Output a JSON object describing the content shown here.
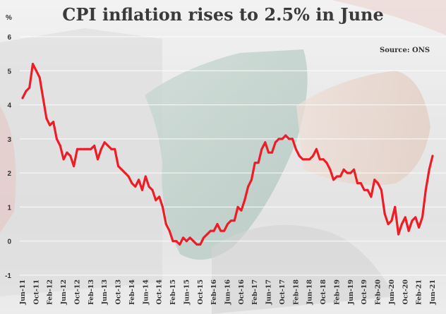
{
  "chart_data": {
    "type": "line",
    "title": "CPI inflation rises to 2.5% in June",
    "source": "Source: ONS",
    "ylabel": "%",
    "ylim": [
      -1,
      6
    ],
    "yticks": [
      "-1",
      "0",
      "1",
      "2",
      "3",
      "4",
      "5",
      "6"
    ],
    "grid": true,
    "line_color": "#ee1c25",
    "x_tick_labels": [
      "Jun-11",
      "Oct-11",
      "Feb-12",
      "Jun-12",
      "Oct-12",
      "Feb-13",
      "Jun-13",
      "Oct-13",
      "Feb-14",
      "Jun-14",
      "Oct-14",
      "Feb-15",
      "Jun-15",
      "Oct-15",
      "Feb-16",
      "Jun-16",
      "Oct-16",
      "Feb-17",
      "Jun-17",
      "Oct-17",
      "Feb-18",
      "Jun-18",
      "Oct-18",
      "Feb-19",
      "Jun-19",
      "Oct-19",
      "Feb-20",
      "Jun-20",
      "Oct-20",
      "Feb-21",
      "Jun-21"
    ],
    "series": [
      {
        "x": [
          "2011-06",
          "2011-07",
          "2011-08",
          "2011-09",
          "2011-10",
          "2011-11",
          "2011-12",
          "2012-01",
          "2012-02",
          "2012-03",
          "2012-04",
          "2012-05",
          "2012-06",
          "2012-07",
          "2012-08",
          "2012-09",
          "2012-10",
          "2012-11",
          "2012-12",
          "2013-01",
          "2013-02",
          "2013-03",
          "2013-04",
          "2013-05",
          "2013-06",
          "2013-07",
          "2013-08",
          "2013-09",
          "2013-10",
          "2013-11",
          "2013-12",
          "2014-01",
          "2014-02",
          "2014-03",
          "2014-04",
          "2014-05",
          "2014-06",
          "2014-07",
          "2014-08",
          "2014-09",
          "2014-10",
          "2014-11",
          "2014-12",
          "2015-01",
          "2015-02",
          "2015-03",
          "2015-04",
          "2015-05",
          "2015-06",
          "2015-07",
          "2015-08",
          "2015-09",
          "2015-10",
          "2015-11",
          "2015-12",
          "2016-01",
          "2016-02",
          "2016-03",
          "2016-04",
          "2016-05",
          "2016-06",
          "2016-07",
          "2016-08",
          "2016-09",
          "2016-10",
          "2016-11",
          "2016-12",
          "2017-01",
          "2017-02",
          "2017-03",
          "2017-04",
          "2017-05",
          "2017-06",
          "2017-07",
          "2017-08",
          "2017-09",
          "2017-10",
          "2017-11",
          "2017-12",
          "2018-01",
          "2018-02",
          "2018-03",
          "2018-04",
          "2018-05",
          "2018-06",
          "2018-07",
          "2018-08",
          "2018-09",
          "2018-10",
          "2018-11",
          "2018-12",
          "2019-01",
          "2019-02",
          "2019-03",
          "2019-04",
          "2019-05",
          "2019-06",
          "2019-07",
          "2019-08",
          "2019-09",
          "2019-10",
          "2019-11",
          "2019-12",
          "2020-01",
          "2020-02",
          "2020-03",
          "2020-04",
          "2020-05",
          "2020-06",
          "2020-07",
          "2020-08",
          "2020-09",
          "2020-10",
          "2020-11",
          "2020-12",
          "2021-01",
          "2021-02",
          "2021-03",
          "2021-04",
          "2021-05",
          "2021-06"
        ],
        "values": [
          4.2,
          4.4,
          4.5,
          5.2,
          5.0,
          4.8,
          4.2,
          3.6,
          3.4,
          3.5,
          3.0,
          2.8,
          2.4,
          2.6,
          2.5,
          2.2,
          2.7,
          2.7,
          2.7,
          2.7,
          2.7,
          2.8,
          2.4,
          2.7,
          2.9,
          2.8,
          2.7,
          2.7,
          2.2,
          2.1,
          2.0,
          1.9,
          1.7,
          1.6,
          1.8,
          1.5,
          1.9,
          1.6,
          1.5,
          1.2,
          1.3,
          1.0,
          0.5,
          0.3,
          0.0,
          0.0,
          -0.1,
          0.1,
          0.0,
          0.1,
          0.0,
          -0.1,
          -0.1,
          0.1,
          0.2,
          0.3,
          0.3,
          0.5,
          0.3,
          0.3,
          0.5,
          0.6,
          0.6,
          1.0,
          0.9,
          1.2,
          1.6,
          1.8,
          2.3,
          2.3,
          2.7,
          2.9,
          2.6,
          2.6,
          2.9,
          3.0,
          3.0,
          3.1,
          3.0,
          3.0,
          2.7,
          2.5,
          2.4,
          2.4,
          2.4,
          2.5,
          2.7,
          2.4,
          2.4,
          2.3,
          2.1,
          1.8,
          1.9,
          1.9,
          2.1,
          2.0,
          2.0,
          2.1,
          1.7,
          1.7,
          1.5,
          1.5,
          1.3,
          1.8,
          1.7,
          1.5,
          0.8,
          0.5,
          0.6,
          1.0,
          0.2,
          0.5,
          0.7,
          0.3,
          0.6,
          0.7,
          0.4,
          0.7,
          1.5,
          2.1,
          2.5
        ]
      }
    ]
  }
}
